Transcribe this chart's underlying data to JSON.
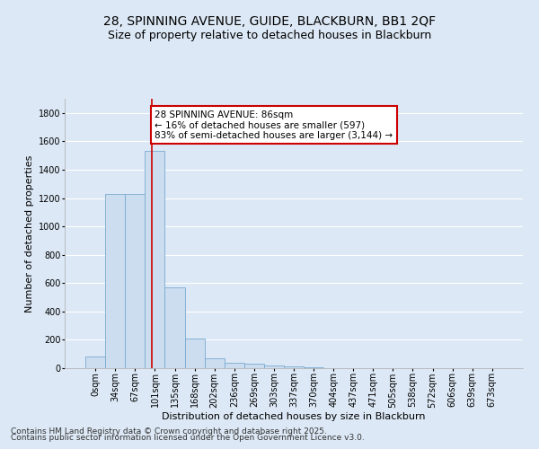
{
  "title": "28, SPINNING AVENUE, GUIDE, BLACKBURN, BB1 2QF",
  "subtitle": "Size of property relative to detached houses in Blackburn",
  "xlabel": "Distribution of detached houses by size in Blackburn",
  "ylabel": "Number of detached properties",
  "bar_color": "#ccddf0",
  "bar_edge_color": "#7aaad0",
  "background_color": "#dce8f5",
  "grid_color": "#c8d4e8",
  "plot_bg_color": "#dce8f5",
  "categories": [
    "0sqm",
    "34sqm",
    "67sqm",
    "101sqm",
    "135sqm",
    "168sqm",
    "202sqm",
    "236sqm",
    "269sqm",
    "303sqm",
    "337sqm",
    "370sqm",
    "404sqm",
    "437sqm",
    "471sqm",
    "505sqm",
    "538sqm",
    "572sqm",
    "606sqm",
    "639sqm",
    "673sqm"
  ],
  "values": [
    80,
    1230,
    1230,
    1530,
    570,
    210,
    70,
    40,
    30,
    20,
    15,
    5,
    2,
    2,
    2,
    2,
    2,
    0,
    0,
    0,
    0
  ],
  "ylim": [
    0,
    1900
  ],
  "yticks": [
    0,
    200,
    400,
    600,
    800,
    1000,
    1200,
    1400,
    1600,
    1800
  ],
  "vline_x": 2.85,
  "annotation_text": "28 SPINNING AVENUE: 86sqm\n← 16% of detached houses are smaller (597)\n83% of semi-detached houses are larger (3,144) →",
  "annotation_box_color": "#ffffff",
  "annotation_box_edge_color": "#cc0000",
  "vline_color": "#cc0000",
  "footer1": "Contains HM Land Registry data © Crown copyright and database right 2025.",
  "footer2": "Contains public sector information licensed under the Open Government Licence v3.0.",
  "title_fontsize": 10,
  "subtitle_fontsize": 9,
  "axis_label_fontsize": 8,
  "tick_fontsize": 7,
  "annotation_fontsize": 7.5,
  "footer_fontsize": 6.5
}
